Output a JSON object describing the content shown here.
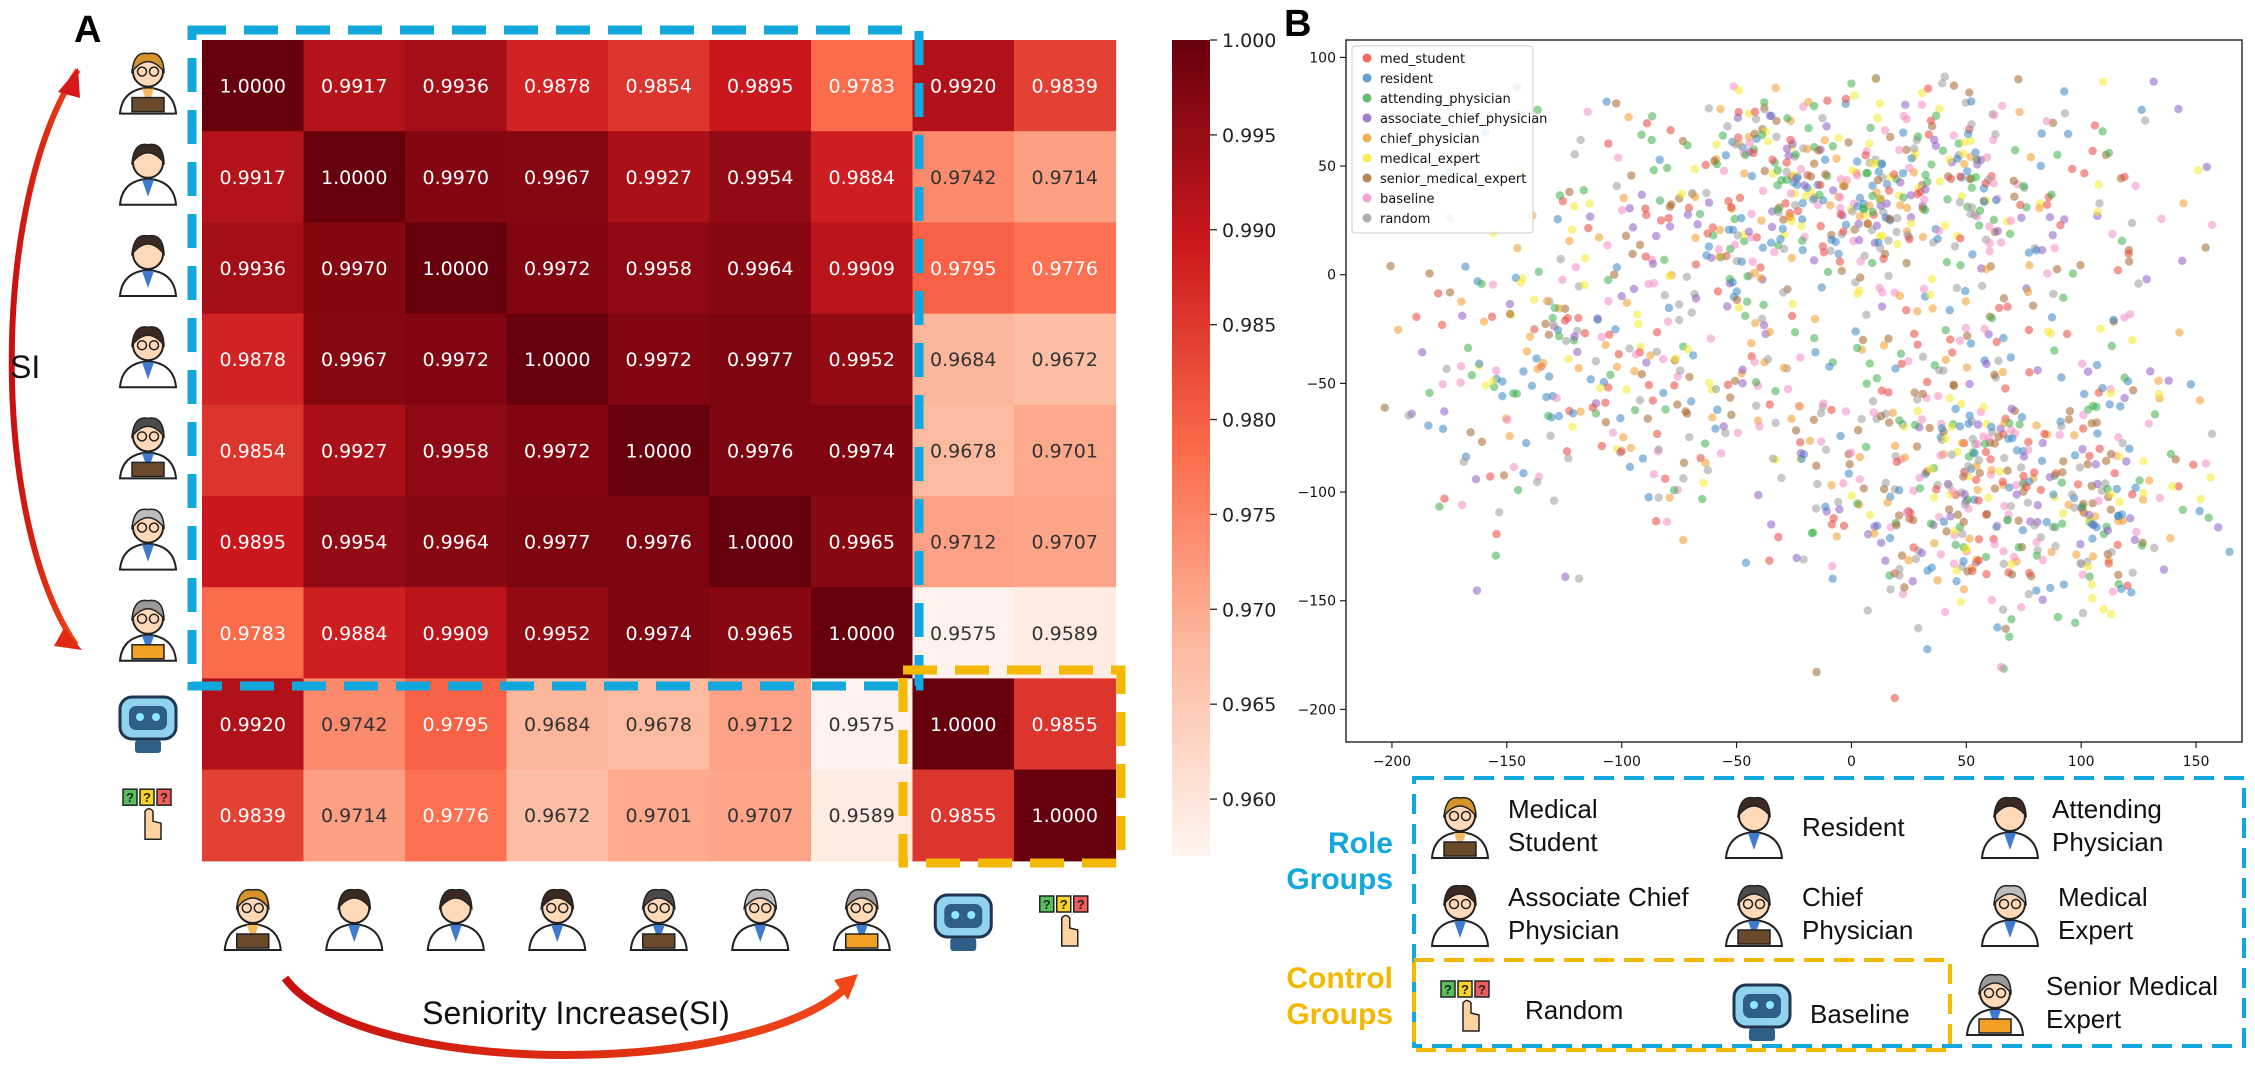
{
  "panel_a_letter": "A",
  "panel_b_letter": "B",
  "chart_data": [
    {
      "type": "heatmap",
      "title": "",
      "rows": [
        "Medical Student",
        "Resident",
        "Attending Physician",
        "Associate Chief Physician",
        "Chief Physician",
        "Medical Expert",
        "Senior Medical Expert",
        "Baseline",
        "Random"
      ],
      "columns": [
        "Medical Student",
        "Resident",
        "Attending Physician",
        "Associate Chief Physician",
        "Chief Physician",
        "Medical Expert",
        "Senior Medical Expert",
        "Baseline",
        "Random"
      ],
      "values": [
        [
          1.0,
          0.9917,
          0.9936,
          0.9878,
          0.9854,
          0.9895,
          0.9783,
          0.992,
          0.9839
        ],
        [
          0.9917,
          1.0,
          0.997,
          0.9967,
          0.9927,
          0.9954,
          0.9884,
          0.9742,
          0.9714
        ],
        [
          0.9936,
          0.997,
          1.0,
          0.9972,
          0.9958,
          0.9964,
          0.9909,
          0.9795,
          0.9776
        ],
        [
          0.9878,
          0.9967,
          0.9972,
          1.0,
          0.9972,
          0.9977,
          0.9952,
          0.9684,
          0.9672
        ],
        [
          0.9854,
          0.9927,
          0.9958,
          0.9972,
          1.0,
          0.9976,
          0.9974,
          0.9678,
          0.9701
        ],
        [
          0.9895,
          0.9954,
          0.9964,
          0.9977,
          0.9976,
          1.0,
          0.9965,
          0.9712,
          0.9707
        ],
        [
          0.9783,
          0.9884,
          0.9909,
          0.9952,
          0.9974,
          0.9965,
          1.0,
          0.9575,
          0.9589
        ],
        [
          0.992,
          0.9742,
          0.9795,
          0.9684,
          0.9678,
          0.9712,
          0.9575,
          1.0,
          0.9855
        ],
        [
          0.9839,
          0.9714,
          0.9776,
          0.9672,
          0.9701,
          0.9707,
          0.9589,
          0.9855,
          1.0
        ]
      ],
      "colorbar": {
        "min": 0.957,
        "max": 1.0,
        "ticks": [
          "1.000",
          "0.995",
          "0.990",
          "0.985",
          "0.980",
          "0.975",
          "0.970",
          "0.965",
          "0.960"
        ],
        "tick_values": [
          1.0,
          0.995,
          0.99,
          0.985,
          0.98,
          0.975,
          0.97,
          0.965,
          0.96
        ]
      },
      "annotations": {
        "si_side": "SI",
        "si_bottom": "Seniority Increase(SI)"
      }
    },
    {
      "type": "scatter",
      "xlim": [
        -220,
        170
      ],
      "ylim": [
        -215,
        108
      ],
      "xticks": [
        -200,
        -150,
        -100,
        -50,
        0,
        50,
        100,
        150
      ],
      "xtick_labels": [
        "−200",
        "−150",
        "−100",
        "−50",
        "0",
        "50",
        "100",
        "150"
      ],
      "yticks": [
        100,
        50,
        0,
        -50,
        -100,
        -150,
        -200
      ],
      "ytick_labels": [
        "100",
        "50",
        "0",
        "−50",
        "−100",
        "−150",
        "−200"
      ],
      "legend_position": "top-left",
      "series": [
        {
          "name": "med_student",
          "color": "#e8453c"
        },
        {
          "name": "resident",
          "color": "#3b87c4"
        },
        {
          "name": "attending_physician",
          "color": "#3cae4a"
        },
        {
          "name": "associate_chief_physician",
          "color": "#8d5bc2"
        },
        {
          "name": "chief_physician",
          "color": "#f19a28"
        },
        {
          "name": "medical_expert",
          "color": "#f5ea2a"
        },
        {
          "name": "senior_medical_expert",
          "color": "#a4652a"
        },
        {
          "name": "baseline",
          "color": "#f48ac4"
        },
        {
          "name": "random",
          "color": "#9a9a9a"
        }
      ]
    }
  ],
  "key": {
    "role_groups_line1": "Role",
    "role_groups_line2": "Groups",
    "control_groups_line1": "Control",
    "control_groups_line2": "Groups",
    "roles": [
      {
        "line1": "Medical",
        "line2": "Student"
      },
      {
        "line1": "Resident",
        "line2": ""
      },
      {
        "line1": "Attending",
        "line2": "Physician"
      },
      {
        "line1": "Associate Chief",
        "line2": "Physician"
      },
      {
        "line1": "Chief",
        "line2": "Physician"
      },
      {
        "line1": "Medical",
        "line2": "Expert"
      },
      {
        "line1": "Senior Medical",
        "line2": "Expert"
      }
    ],
    "controls": [
      {
        "label": "Random"
      },
      {
        "label": "Baseline"
      }
    ],
    "icon_question_mark": "?"
  }
}
